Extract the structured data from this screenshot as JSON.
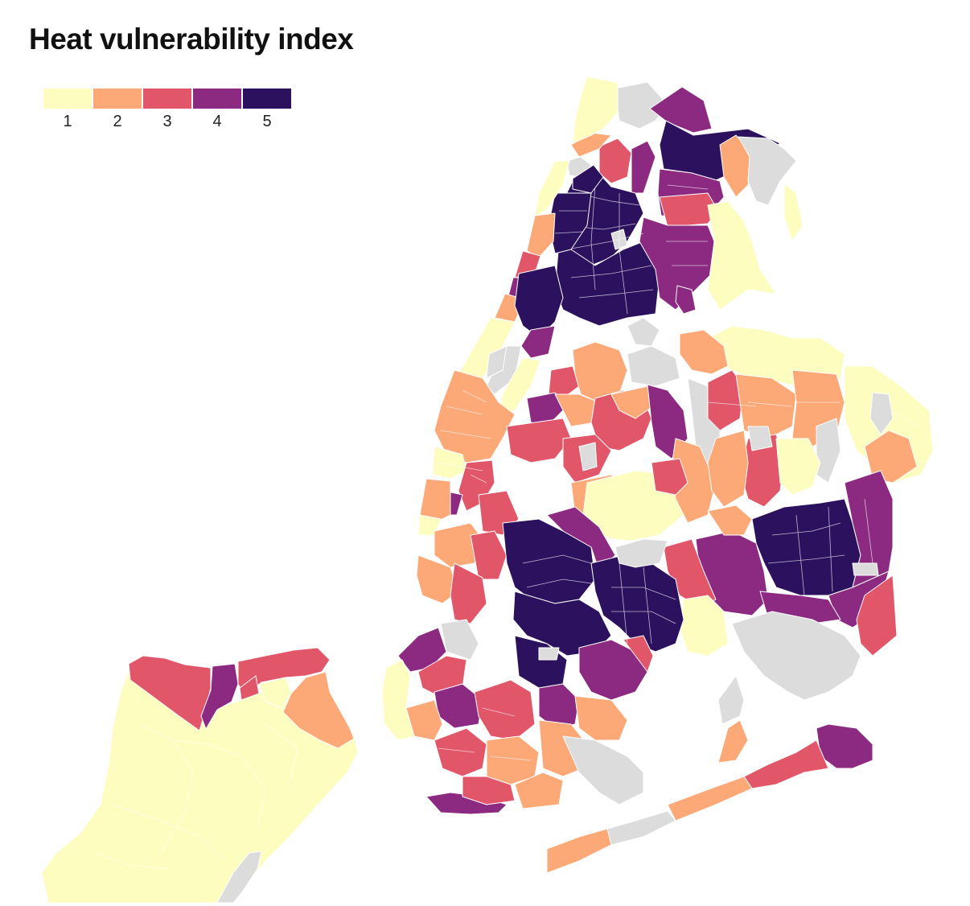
{
  "title": "Heat vulnerability index",
  "legend": {
    "items": [
      {
        "label": "1",
        "color": "#fcfdbf"
      },
      {
        "label": "2",
        "color": "#fca877"
      },
      {
        "label": "3",
        "color": "#e2566a"
      },
      {
        "label": "4",
        "color": "#8c2981"
      },
      {
        "label": "5",
        "color": "#2c115f"
      }
    ]
  },
  "no_data_color": "#dcdcdc"
}
